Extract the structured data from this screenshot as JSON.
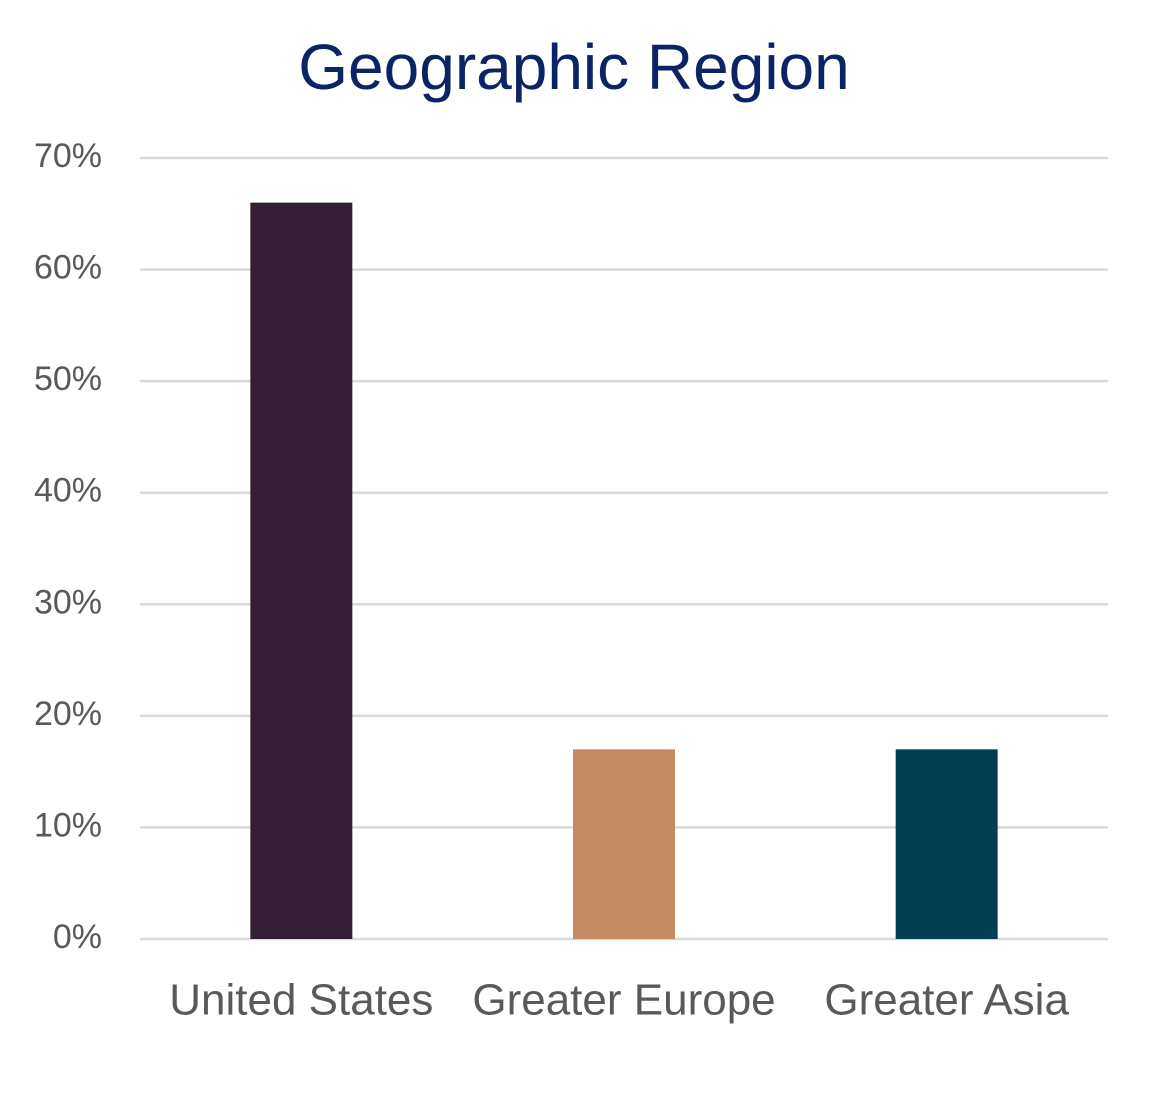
{
  "chart_data": {
    "type": "bar",
    "title": "Geographic Region",
    "categories": [
      "United States",
      "Greater Europe",
      "Greater Asia"
    ],
    "values": [
      66,
      17,
      17
    ],
    "colors": [
      "#331e36",
      "#c38b61",
      "#023f50"
    ],
    "ylim": [
      0,
      70
    ],
    "yticks": [
      {
        "value": 0,
        "label": "0%"
      },
      {
        "value": 10,
        "label": "10%"
      },
      {
        "value": 20,
        "label": "20%"
      },
      {
        "value": 30,
        "label": "30%"
      },
      {
        "value": 40,
        "label": "40%"
      },
      {
        "value": 50,
        "label": "50%"
      },
      {
        "value": 60,
        "label": "60%"
      },
      {
        "value": 70,
        "label": "70%"
      }
    ],
    "grid": true
  }
}
